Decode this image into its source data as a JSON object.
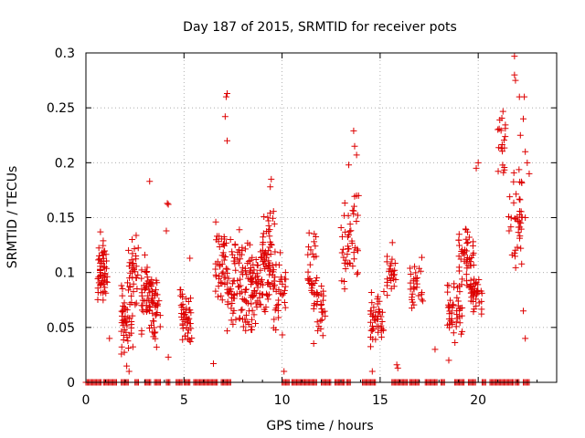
{
  "chart_data": {
    "type": "scatter",
    "title": "Day 187 of 2015, SRMTID for receiver pots",
    "xlabel": "GPS time / hours",
    "ylabel": "SRMTID / TECUs",
    "xlim": [
      0,
      24
    ],
    "ylim": [
      0,
      0.3
    ],
    "xticks": [
      0,
      5,
      10,
      15,
      20
    ],
    "xtick_labels": [
      "0",
      "5",
      "10",
      "15",
      "20"
    ],
    "yticks": [
      0,
      0.05,
      0.1,
      0.15,
      0.2,
      0.25,
      0.3
    ],
    "ytick_labels": [
      "0",
      "0.05",
      "0.1",
      "0.15",
      "0.2",
      "0.25",
      "0.3"
    ],
    "grid": true,
    "marker": "+",
    "color": "#dd0000",
    "clusters": [
      {
        "x": [
          0.6,
          1.1
        ],
        "y": [
          0.07,
          0.14
        ],
        "n": 55
      },
      {
        "x": [
          1.8,
          2.4
        ],
        "y": [
          0.01,
          0.1
        ],
        "n": 45
      },
      {
        "x": [
          2.1,
          2.7
        ],
        "y": [
          0.06,
          0.15
        ],
        "n": 35
      },
      {
        "x": [
          2.8,
          3.4
        ],
        "y": [
          0.04,
          0.12
        ],
        "n": 45
      },
      {
        "x": [
          3.2,
          3.8
        ],
        "y": [
          0.03,
          0.1
        ],
        "n": 40
      },
      {
        "x": [
          4.8,
          5.4
        ],
        "y": [
          0.03,
          0.09
        ],
        "n": 45
      },
      {
        "x": [
          6.6,
          7.2
        ],
        "y": [
          0.06,
          0.15
        ],
        "n": 35
      },
      {
        "x": [
          7.0,
          8.5
        ],
        "y": [
          0.04,
          0.14
        ],
        "n": 110
      },
      {
        "x": [
          8.4,
          9.4
        ],
        "y": [
          0.05,
          0.13
        ],
        "n": 70
      },
      {
        "x": [
          9.0,
          9.7
        ],
        "y": [
          0.08,
          0.17
        ],
        "n": 40
      },
      {
        "x": [
          9.5,
          10.2
        ],
        "y": [
          0.04,
          0.12
        ],
        "n": 35
      },
      {
        "x": [
          11.3,
          11.8
        ],
        "y": [
          0.06,
          0.14
        ],
        "n": 30
      },
      {
        "x": [
          11.6,
          12.2
        ],
        "y": [
          0.03,
          0.1
        ],
        "n": 30
      },
      {
        "x": [
          13.0,
          13.9
        ],
        "y": [
          0.08,
          0.18
        ],
        "n": 45
      },
      {
        "x": [
          14.5,
          15.2
        ],
        "y": [
          0.03,
          0.09
        ],
        "n": 45
      },
      {
        "x": [
          15.3,
          15.8
        ],
        "y": [
          0.07,
          0.14
        ],
        "n": 25
      },
      {
        "x": [
          16.5,
          17.2
        ],
        "y": [
          0.06,
          0.12
        ],
        "n": 30
      },
      {
        "x": [
          18.4,
          19.2
        ],
        "y": [
          0.03,
          0.1
        ],
        "n": 45
      },
      {
        "x": [
          19.0,
          19.8
        ],
        "y": [
          0.08,
          0.15
        ],
        "n": 50
      },
      {
        "x": [
          19.6,
          20.2
        ],
        "y": [
          0.06,
          0.1
        ],
        "n": 35
      },
      {
        "x": [
          21.0,
          21.4
        ],
        "y": [
          0.18,
          0.25
        ],
        "n": 20
      },
      {
        "x": [
          21.5,
          22.3
        ],
        "y": [
          0.1,
          0.2
        ],
        "n": 40
      }
    ],
    "outliers": [
      {
        "x": 7.2,
        "y": 0.263
      },
      {
        "x": 7.15,
        "y": 0.26
      },
      {
        "x": 7.1,
        "y": 0.242
      },
      {
        "x": 7.2,
        "y": 0.22
      },
      {
        "x": 9.45,
        "y": 0.185
      },
      {
        "x": 9.4,
        "y": 0.178
      },
      {
        "x": 3.25,
        "y": 0.183
      },
      {
        "x": 4.15,
        "y": 0.163
      },
      {
        "x": 4.2,
        "y": 0.162
      },
      {
        "x": 13.65,
        "y": 0.229
      },
      {
        "x": 13.7,
        "y": 0.215
      },
      {
        "x": 13.8,
        "y": 0.207
      },
      {
        "x": 13.4,
        "y": 0.198
      },
      {
        "x": 13.9,
        "y": 0.17
      },
      {
        "x": 20.0,
        "y": 0.2
      },
      {
        "x": 19.9,
        "y": 0.195
      },
      {
        "x": 21.85,
        "y": 0.297
      },
      {
        "x": 21.85,
        "y": 0.28
      },
      {
        "x": 21.9,
        "y": 0.275
      },
      {
        "x": 22.1,
        "y": 0.26
      },
      {
        "x": 22.35,
        "y": 0.26
      },
      {
        "x": 22.3,
        "y": 0.24
      },
      {
        "x": 22.15,
        "y": 0.225
      },
      {
        "x": 22.4,
        "y": 0.21
      },
      {
        "x": 22.5,
        "y": 0.2
      },
      {
        "x": 22.6,
        "y": 0.19
      },
      {
        "x": 22.4,
        "y": 0.15
      },
      {
        "x": 22.3,
        "y": 0.065
      },
      {
        "x": 22.4,
        "y": 0.04
      },
      {
        "x": 4.1,
        "y": 0.138
      },
      {
        "x": 4.2,
        "y": 0.023
      },
      {
        "x": 2.2,
        "y": 0.01
      },
      {
        "x": 1.2,
        "y": 0.04
      },
      {
        "x": 14.6,
        "y": 0.01
      },
      {
        "x": 15.85,
        "y": 0.016
      },
      {
        "x": 15.9,
        "y": 0.013
      },
      {
        "x": 10.1,
        "y": 0.01
      },
      {
        "x": 6.5,
        "y": 0.017
      },
      {
        "x": 18.5,
        "y": 0.02
      },
      {
        "x": 5.3,
        "y": 0.113
      },
      {
        "x": 17.8,
        "y": 0.03
      }
    ],
    "zero_segments": [
      [
        0.0,
        0.8
      ],
      [
        0.9,
        1.6
      ],
      [
        1.8,
        2.2
      ],
      [
        2.5,
        2.7
      ],
      [
        3.0,
        3.3
      ],
      [
        3.5,
        3.8
      ],
      [
        4.1,
        4.3
      ],
      [
        4.6,
        4.9
      ],
      [
        5.0,
        5.3
      ],
      [
        5.5,
        6.7
      ],
      [
        6.9,
        7.4
      ],
      [
        10.0,
        10.4
      ],
      [
        10.5,
        11.8
      ],
      [
        12.0,
        12.5
      ],
      [
        12.7,
        13.2
      ],
      [
        13.3,
        13.5
      ],
      [
        14.1,
        14.8
      ],
      [
        15.6,
        16.4
      ],
      [
        16.5,
        17.0
      ],
      [
        17.3,
        17.9
      ],
      [
        18.1,
        18.3
      ],
      [
        18.8,
        19.3
      ],
      [
        19.5,
        19.9
      ],
      [
        20.2,
        20.4
      ],
      [
        20.6,
        21.8
      ],
      [
        21.9,
        22.1
      ],
      [
        22.3,
        22.6
      ]
    ]
  }
}
